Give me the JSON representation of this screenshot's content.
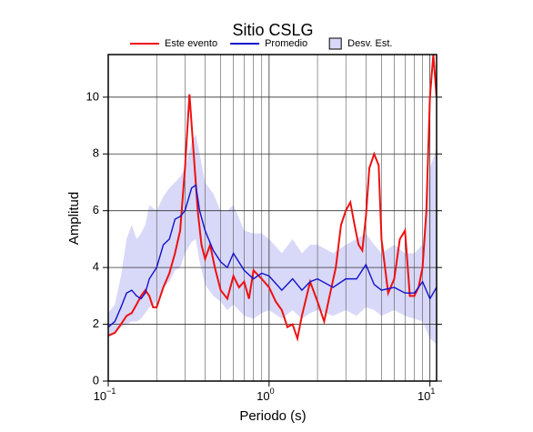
{
  "chart_data": {
    "type": "line",
    "title": "Sitio CSLG",
    "xlabel": "Periodo (s)",
    "ylabel": "Amplitud",
    "xscale": "log",
    "xlim": [
      0.1,
      11
    ],
    "ylim": [
      0,
      11.5
    ],
    "xticks": [
      {
        "value": 0.1,
        "label": "10",
        "exponent": "−1"
      },
      {
        "value": 1,
        "label": "10",
        "exponent": "0"
      },
      {
        "value": 10,
        "label": "10",
        "exponent": "1"
      }
    ],
    "yticks": [
      0,
      2,
      4,
      6,
      8,
      10
    ],
    "grid": true,
    "series": [
      {
        "name": "Este evento",
        "color": "#ee1111",
        "x": [
          0.1,
          0.11,
          0.12,
          0.13,
          0.14,
          0.15,
          0.16,
          0.17,
          0.18,
          0.19,
          0.2,
          0.22,
          0.24,
          0.26,
          0.28,
          0.3,
          0.32,
          0.34,
          0.36,
          0.38,
          0.4,
          0.43,
          0.46,
          0.5,
          0.55,
          0.6,
          0.65,
          0.7,
          0.75,
          0.8,
          0.9,
          1.0,
          1.1,
          1.2,
          1.3,
          1.4,
          1.5,
          1.6,
          1.8,
          2.0,
          2.2,
          2.4,
          2.6,
          2.8,
          3.0,
          3.2,
          3.4,
          3.6,
          3.8,
          4.0,
          4.2,
          4.5,
          4.8,
          5.0,
          5.5,
          6.0,
          6.5,
          7.0,
          7.5,
          8.0,
          8.5,
          9.0,
          9.5,
          10.0,
          10.5,
          11
        ],
        "values": [
          1.6,
          1.7,
          2.0,
          2.3,
          2.4,
          2.7,
          3.0,
          3.2,
          3.0,
          2.6,
          2.6,
          3.3,
          3.8,
          4.5,
          5.3,
          7.5,
          10.1,
          8.0,
          6.0,
          4.8,
          4.3,
          4.8,
          4.0,
          3.2,
          2.9,
          3.7,
          3.3,
          3.5,
          2.9,
          3.9,
          3.6,
          3.3,
          2.8,
          2.5,
          1.9,
          2.0,
          1.5,
          2.3,
          3.5,
          2.8,
          2.1,
          3.1,
          4.0,
          5.5,
          6.0,
          6.3,
          5.5,
          4.8,
          4.6,
          5.8,
          7.5,
          8.0,
          7.6,
          5.0,
          3.1,
          3.6,
          5.0,
          5.3,
          3.0,
          3.0,
          3.3,
          4.0,
          6.0,
          10.0,
          11.5,
          10.0
        ]
      },
      {
        "name": "Promedio",
        "color": "#1111cc",
        "x": [
          0.1,
          0.11,
          0.12,
          0.13,
          0.14,
          0.15,
          0.16,
          0.17,
          0.18,
          0.2,
          0.22,
          0.24,
          0.26,
          0.28,
          0.3,
          0.33,
          0.35,
          0.37,
          0.4,
          0.45,
          0.5,
          0.55,
          0.6,
          0.7,
          0.8,
          0.9,
          1.0,
          1.2,
          1.4,
          1.6,
          1.8,
          2.0,
          2.5,
          3.0,
          3.5,
          4.0,
          4.5,
          5,
          6,
          7,
          8,
          9,
          10,
          11
        ],
        "values": [
          1.9,
          2.1,
          2.6,
          3.1,
          3.2,
          3.0,
          2.9,
          3.1,
          3.6,
          4.0,
          4.8,
          5.0,
          5.7,
          5.8,
          6.0,
          6.8,
          6.9,
          6.0,
          5.3,
          4.6,
          4.2,
          4.0,
          4.5,
          3.9,
          3.6,
          3.8,
          3.7,
          3.2,
          3.6,
          3.2,
          3.5,
          3.6,
          3.3,
          3.6,
          3.6,
          4.1,
          3.4,
          3.2,
          3.3,
          3.1,
          3.1,
          3.5,
          2.9,
          3.3
        ]
      }
    ],
    "band": {
      "name": "Desv. Est.",
      "color": "#d8d8f8",
      "x": [
        0.1,
        0.11,
        0.12,
        0.13,
        0.14,
        0.15,
        0.16,
        0.17,
        0.18,
        0.2,
        0.22,
        0.24,
        0.26,
        0.28,
        0.3,
        0.33,
        0.35,
        0.37,
        0.4,
        0.45,
        0.5,
        0.55,
        0.6,
        0.7,
        0.8,
        0.9,
        1.0,
        1.2,
        1.4,
        1.6,
        1.8,
        2.0,
        2.5,
        3.0,
        3.5,
        4.0,
        4.5,
        5,
        6,
        7,
        8,
        9,
        10,
        11
      ],
      "lower": [
        1.6,
        1.7,
        1.9,
        2.0,
        2.1,
        2.1,
        2.2,
        2.4,
        2.6,
        2.8,
        3.3,
        3.5,
        3.9,
        4.0,
        4.5,
        4.9,
        5.0,
        4.2,
        3.4,
        3.0,
        2.8,
        2.5,
        2.7,
        2.3,
        2.2,
        2.4,
        2.5,
        2.2,
        2.5,
        2.2,
        2.4,
        2.5,
        2.3,
        2.5,
        2.3,
        2.6,
        2.5,
        2.3,
        2.5,
        2.3,
        2.2,
        2.1,
        1.5,
        1.3
      ],
      "upper": [
        2.4,
        2.7,
        3.7,
        5.0,
        5.5,
        5.0,
        5.2,
        5.5,
        6.2,
        6.0,
        6.5,
        6.8,
        7.0,
        7.2,
        7.5,
        8.4,
        8.7,
        8.0,
        7.0,
        6.6,
        6.0,
        6.0,
        6.2,
        5.3,
        5.2,
        5.2,
        5.0,
        4.5,
        5.0,
        4.5,
        4.8,
        4.8,
        4.5,
        4.8,
        5.0,
        5.2,
        4.8,
        4.5,
        4.8,
        4.5,
        4.5,
        4.8,
        7.5,
        8.2
      ]
    }
  }
}
